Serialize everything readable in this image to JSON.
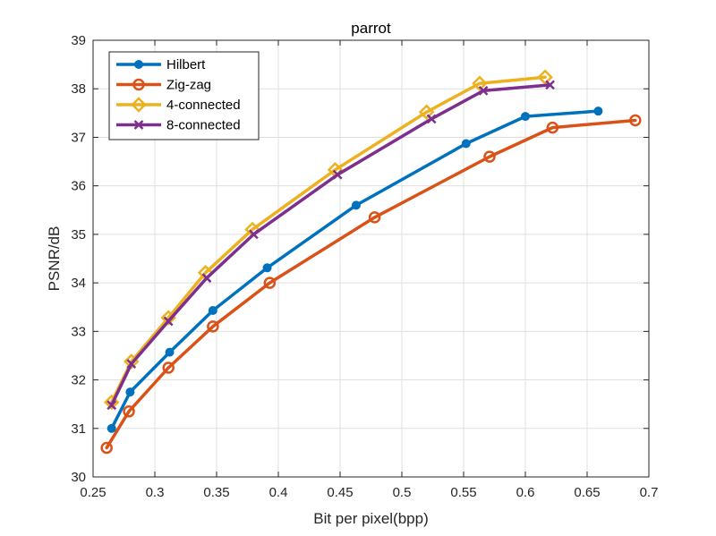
{
  "chart_data": {
    "type": "line",
    "title": "parrot",
    "xlabel": "Bit per pixel(bpp)",
    "ylabel": "PSNR/dB",
    "xlim": [
      0.25,
      0.7
    ],
    "ylim": [
      30,
      39
    ],
    "xticks": [
      "0.25",
      "0.3",
      "0.35",
      "0.4",
      "0.45",
      "0.5",
      "0.55",
      "0.6",
      "0.65",
      "0.7"
    ],
    "yticks": [
      "30",
      "31",
      "32",
      "33",
      "34",
      "35",
      "36",
      "37",
      "38",
      "39"
    ],
    "grid": true,
    "legend_position": "top-left",
    "series": [
      {
        "name": "Hilbert",
        "color": "#0072BD",
        "marker": "circle-filled",
        "x": [
          0.265,
          0.28,
          0.312,
          0.347,
          0.391,
          0.463,
          0.552,
          0.6,
          0.659
        ],
        "y": [
          31.0,
          31.75,
          32.57,
          33.43,
          34.31,
          35.6,
          36.87,
          37.43,
          37.54
        ]
      },
      {
        "name": "Zig-zag",
        "color": "#D95319",
        "marker": "circle-open",
        "x": [
          0.261,
          0.279,
          0.311,
          0.347,
          0.393,
          0.478,
          0.571,
          0.622,
          0.689
        ],
        "y": [
          30.6,
          31.35,
          32.25,
          33.1,
          34.0,
          35.35,
          36.6,
          37.2,
          37.35
        ]
      },
      {
        "name": "4-connected",
        "color": "#EDB120",
        "marker": "diamond-open",
        "x": [
          0.265,
          0.281,
          0.311,
          0.341,
          0.379,
          0.446,
          0.52,
          0.563,
          0.616
        ],
        "y": [
          31.54,
          32.38,
          33.28,
          34.21,
          35.1,
          36.33,
          37.52,
          38.11,
          38.24
        ]
      },
      {
        "name": "8-connected",
        "color": "#7E2F8E",
        "marker": "x",
        "x": [
          0.265,
          0.281,
          0.311,
          0.342,
          0.38,
          0.448,
          0.524,
          0.566,
          0.62
        ],
        "y": [
          31.48,
          32.33,
          33.21,
          34.1,
          35.0,
          36.23,
          37.38,
          37.96,
          38.08
        ]
      }
    ]
  }
}
